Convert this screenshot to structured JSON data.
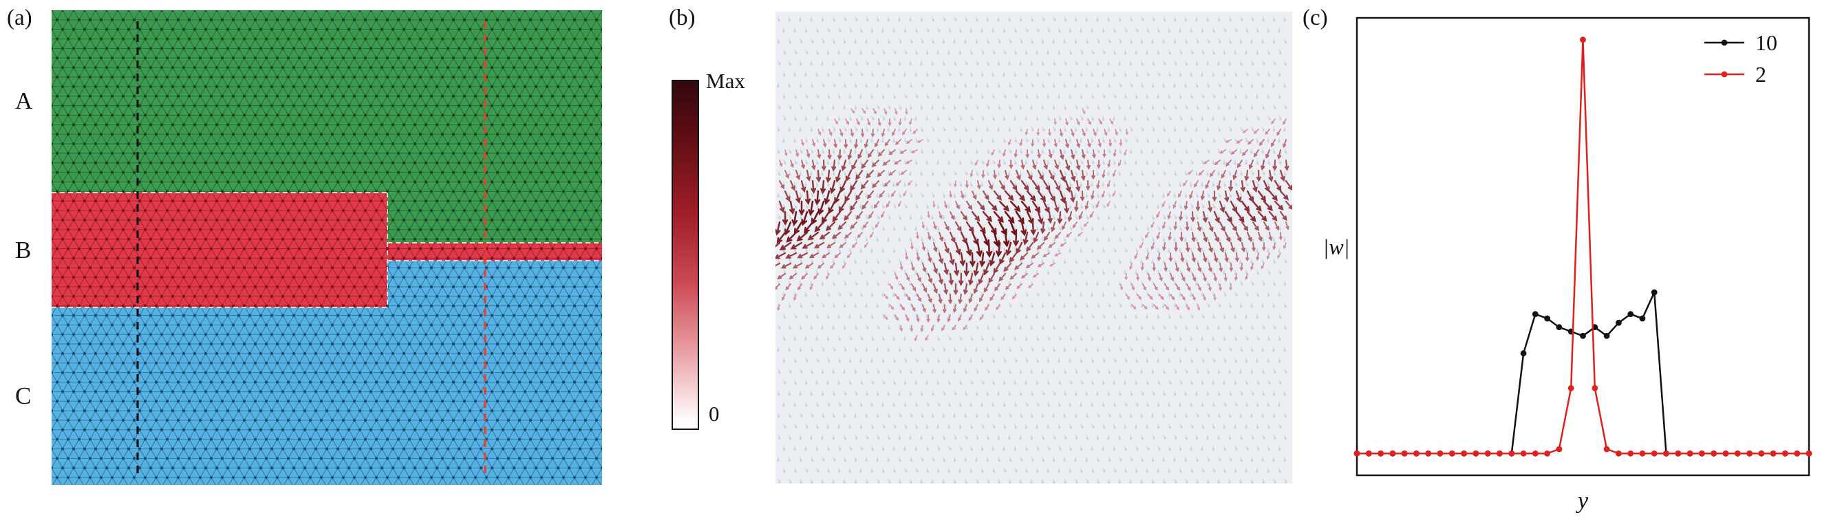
{
  "figure": {
    "panel_a": {
      "label": "(a)",
      "regions": [
        {
          "name": "A",
          "color": "#3c9b4f"
        },
        {
          "name": "B",
          "color": "#e0394a"
        },
        {
          "name": "C",
          "color": "#56b2e4"
        }
      ],
      "edge_colors": {
        "A": "#143a1d",
        "B": "#6e0f18",
        "C": "#123f63"
      },
      "guide_lines": [
        {
          "color": "#111111",
          "style": "dashed"
        },
        {
          "color": "#e8402e",
          "style": "dashed"
        }
      ],
      "boundary_color": "#f2f2f2"
    },
    "colorbar": {
      "max_label": "Max",
      "min_label": "0",
      "gradient": [
        "#33090f 0%",
        "#5c0d13 15%",
        "#a01d28 38%",
        "#cc4a55 58%",
        "#eba9ad 80%",
        "#fdf4f4 96%",
        "#ffffff 100%"
      ]
    },
    "panel_b": {
      "label": "(b)",
      "background": "#ebeef3",
      "lattice_color": "#c9ced8",
      "arrow_color_low": "#f0b6ba",
      "arrow_color_high": "#6d0b12"
    },
    "panel_c": {
      "label": "(c)"
    }
  },
  "chart_data": [
    {
      "type": "quiver",
      "title": "",
      "description": "In-plane displacement field shown as red arrows over a faint gray graphene lattice; arrow magnitude follows the colorbar from 0 (white) to Max (dark red), concentrated in a horizontal band across the middle of the panel with swirling texture",
      "grid": {
        "cols": 46,
        "rows": 45
      },
      "band": {
        "center_frac": 0.44,
        "sigma_frac": 0.125
      }
    },
    {
      "type": "line",
      "title": "",
      "xlabel": "y",
      "ylabel": "|w|",
      "x_ticks_visible": false,
      "y_ticks_visible": false,
      "ylim": [
        0,
        1.05
      ],
      "legend_position": "upper right",
      "legend": [
        "10",
        "2"
      ],
      "x": [
        0,
        1,
        2,
        3,
        4,
        5,
        6,
        7,
        8,
        9,
        10,
        11,
        12,
        13,
        14,
        15,
        16,
        17,
        18,
        19,
        20,
        21,
        22,
        23,
        24,
        25,
        26,
        27,
        28,
        29,
        30,
        31,
        32,
        33,
        34,
        35,
        36,
        37,
        38
      ],
      "series": [
        {
          "name": "10",
          "color": "#111111",
          "marker": "circle",
          "values": [
            0.05,
            0.05,
            0.05,
            0.05,
            0.05,
            0.05,
            0.05,
            0.05,
            0.05,
            0.05,
            0.05,
            0.05,
            0.05,
            0.05,
            0.28,
            0.37,
            0.36,
            0.34,
            0.33,
            0.32,
            0.34,
            0.32,
            0.35,
            0.37,
            0.36,
            0.42,
            0.05,
            0.05,
            0.05,
            0.05,
            0.05,
            0.05,
            0.05,
            0.05,
            0.05,
            0.05,
            0.05,
            0.05,
            0.05
          ]
        },
        {
          "name": "2",
          "color": "#e0201b",
          "marker": "circle",
          "values": [
            0.05,
            0.05,
            0.05,
            0.05,
            0.05,
            0.05,
            0.05,
            0.05,
            0.05,
            0.05,
            0.05,
            0.05,
            0.05,
            0.05,
            0.05,
            0.05,
            0.05,
            0.06,
            0.2,
            1.0,
            0.2,
            0.06,
            0.05,
            0.05,
            0.05,
            0.05,
            0.05,
            0.05,
            0.05,
            0.05,
            0.05,
            0.05,
            0.05,
            0.05,
            0.05,
            0.05,
            0.05,
            0.05,
            0.05
          ]
        }
      ]
    }
  ]
}
